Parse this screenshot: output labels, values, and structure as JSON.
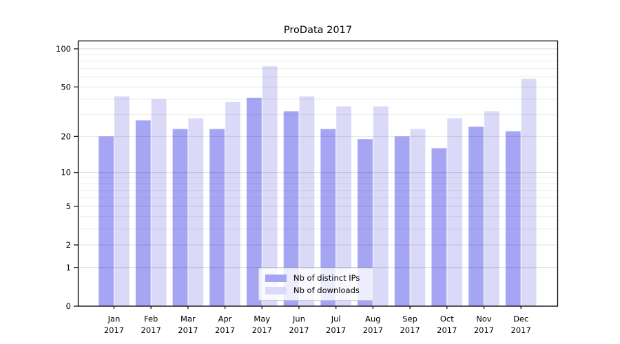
{
  "chart_data": {
    "type": "bar",
    "title": "ProData 2017",
    "categories": [
      "Jan 2017",
      "Feb 2017",
      "Mar 2017",
      "Apr 2017",
      "May 2017",
      "Jun 2017",
      "Jul 2017",
      "Aug 2017",
      "Sep 2017",
      "Oct 2017",
      "Nov 2017",
      "Dec 2017"
    ],
    "x_tick_top": [
      "Jan",
      "Feb",
      "Mar",
      "Apr",
      "May",
      "Jun",
      "Jul",
      "Aug",
      "Sep",
      "Oct",
      "Nov",
      "Dec"
    ],
    "x_tick_bottom": "2017",
    "series": [
      {
        "name": "Nb of distinct IPs",
        "color": "#a5a5f4",
        "values": [
          20,
          27,
          23,
          23,
          41,
          32,
          23,
          19,
          20,
          16,
          24,
          22
        ]
      },
      {
        "name": "Nb of downloads",
        "color": "#dadaf8",
        "values": [
          42,
          40,
          28,
          38,
          73,
          42,
          35,
          35,
          23,
          28,
          32,
          58
        ]
      }
    ],
    "y_axis": {
      "scale": "log1p",
      "tick_labels": [
        0,
        1,
        2,
        5,
        10,
        20,
        50,
        100
      ],
      "minor_gridlines": [
        3,
        4,
        6,
        7,
        8,
        9,
        30,
        40,
        60,
        70,
        80,
        90
      ],
      "ylim": [
        0,
        115
      ]
    },
    "xlabel": "",
    "ylabel": "",
    "grid": "on",
    "legend": {
      "position": "lower center"
    },
    "colors": {
      "axis": "#000000",
      "text": "#000000",
      "background": "#ffffff"
    }
  }
}
